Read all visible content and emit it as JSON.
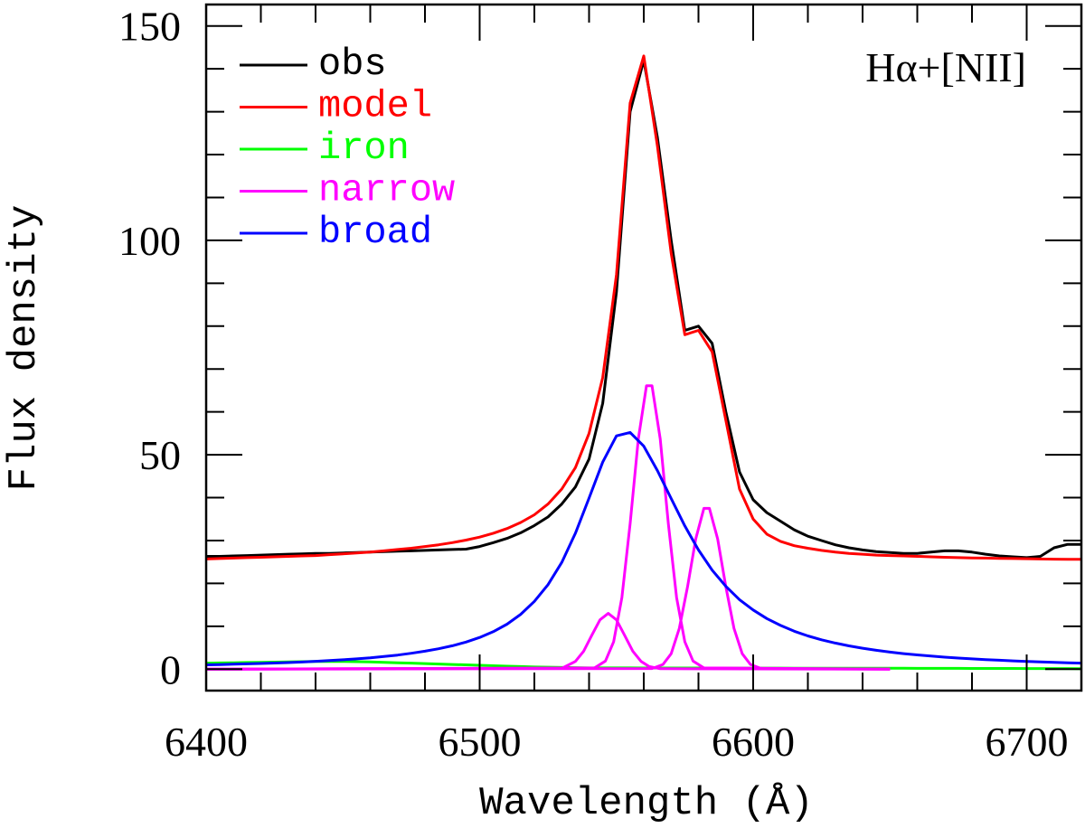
{
  "chart_data": {
    "type": "line",
    "title": "",
    "annotation": "Hα+[NII]",
    "xlabel": "Wavelength (Å)",
    "ylabel": "Flux density",
    "xlim": [
      6400,
      6720
    ],
    "ylim": [
      -5,
      155
    ],
    "x_ticks": [
      6400,
      6500,
      6600,
      6700
    ],
    "x_tick_labels": [
      "6400",
      "6500",
      "6600",
      "6700"
    ],
    "y_ticks": [
      0,
      50,
      100,
      150
    ],
    "y_tick_labels": [
      "0",
      "50",
      "100",
      "150"
    ],
    "x_minor_step": 20,
    "y_minor_step": 10,
    "grid": false,
    "legend_placement": "top-left",
    "x": [
      6400,
      6405,
      6410,
      6415,
      6420,
      6425,
      6430,
      6435,
      6440,
      6445,
      6450,
      6455,
      6460,
      6465,
      6470,
      6475,
      6480,
      6485,
      6490,
      6495,
      6500,
      6505,
      6510,
      6515,
      6520,
      6525,
      6530,
      6535,
      6540,
      6545,
      6550,
      6555,
      6560,
      6565,
      6570,
      6575,
      6580,
      6585,
      6590,
      6595,
      6600,
      6605,
      6610,
      6615,
      6620,
      6625,
      6630,
      6635,
      6640,
      6645,
      6650,
      6655,
      6660,
      6665,
      6670,
      6675,
      6680,
      6685,
      6690,
      6695,
      6700,
      6705,
      6710,
      6715,
      6720
    ],
    "series": [
      {
        "name": "obs",
        "color": "#000000",
        "values": [
          26.3,
          26.3,
          26.4,
          26.5,
          26.6,
          26.7,
          26.8,
          26.9,
          27.0,
          27.0,
          27.1,
          27.2,
          27.3,
          27.4,
          27.5,
          27.6,
          27.7,
          27.8,
          27.9,
          28.0,
          28.6,
          29.5,
          30.5,
          31.8,
          33.5,
          35.5,
          38.5,
          42.5,
          49,
          62,
          88,
          130,
          142,
          124,
          100,
          79,
          80,
          76,
          60,
          46,
          39.5,
          36.5,
          34.5,
          32.5,
          31,
          30,
          29,
          28.3,
          27.8,
          27.4,
          27.2,
          27.0,
          27.0,
          27.3,
          27.6,
          27.6,
          27.3,
          26.8,
          26.4,
          26.2,
          26.0,
          26.3,
          28.3,
          29.1,
          29.1
        ]
      },
      {
        "name": "model",
        "color": "#ff0000",
        "values": [
          25.7,
          25.8,
          25.9,
          26.0,
          26.1,
          26.2,
          26.3,
          26.4,
          26.5,
          26.7,
          26.9,
          27.1,
          27.3,
          27.6,
          27.9,
          28.2,
          28.6,
          29.0,
          29.5,
          30.1,
          30.8,
          31.7,
          32.8,
          34.2,
          36.0,
          38.5,
          42,
          47,
          55,
          68,
          92,
          132,
          143,
          122,
          97,
          78,
          79,
          74,
          58,
          42,
          35,
          31.5,
          29.8,
          28.8,
          28.2,
          27.7,
          27.3,
          27.0,
          26.8,
          26.6,
          26.5,
          26.4,
          26.3,
          26.2,
          26.1,
          26.0,
          25.95,
          25.9,
          25.85,
          25.8,
          25.75,
          25.7,
          25.65,
          25.6,
          25.6
        ]
      },
      {
        "name": "iron",
        "color": "#00ff00",
        "values": [
          1.4,
          1.45,
          1.5,
          1.55,
          1.6,
          1.65,
          1.7,
          1.75,
          1.8,
          1.8,
          1.8,
          1.75,
          1.7,
          1.6,
          1.5,
          1.4,
          1.3,
          1.2,
          1.1,
          1.0,
          0.9,
          0.8,
          0.7,
          0.6,
          0.5,
          0.45,
          0.4,
          0.35,
          0.3,
          0.3,
          0.3,
          0.3,
          0.28,
          0.28,
          0.27,
          0.27,
          0.26,
          0.26,
          0.25,
          0.25,
          0.25,
          0.24,
          0.24,
          0.23,
          0.23,
          0.22,
          0.22,
          0.21,
          0.21,
          0.2,
          0.2,
          0.2,
          0.19,
          0.19,
          0.18,
          0.18,
          0.17,
          0.17,
          0.16,
          0.16,
          0.15,
          0.15,
          0.14,
          0.14,
          0.13
        ]
      },
      {
        "name": "broad",
        "color": "#0000ff",
        "values": [
          1.01,
          1.08,
          1.15,
          1.23,
          1.33,
          1.43,
          1.54,
          1.67,
          1.82,
          1.99,
          2.18,
          2.39,
          2.64,
          2.94,
          3.28,
          3.7,
          4.19,
          4.76,
          5.46,
          6.32,
          7.4,
          8.74,
          10.5,
          12.8,
          15.8,
          19.7,
          24.9,
          31.7,
          39.9,
          48.3,
          54.4,
          55.2,
          52.0,
          46.3,
          39.8,
          33.4,
          27.8,
          23.1,
          19.3,
          16.2,
          13.8,
          11.8,
          10.2,
          8.85,
          7.75,
          6.84,
          6.08,
          5.43,
          4.88,
          4.4,
          3.99,
          3.63,
          3.32,
          3.05,
          2.81,
          2.59,
          2.4,
          2.23,
          2.08,
          1.93,
          1.81,
          1.7,
          1.59,
          1.5,
          1.41
        ]
      }
    ],
    "narrow": {
      "name": "narrow",
      "color": "#ff00ff",
      "components": [
        {
          "x": [
            6400,
            6530,
            6535,
            6538,
            6541,
            6544,
            6547,
            6550,
            6553,
            6556,
            6559,
            6562,
            6566,
            6650
          ],
          "y": [
            0,
            0.2,
            1.8,
            4.2,
            7.9,
            11.5,
            13,
            11.5,
            7.9,
            4.2,
            1.8,
            0.6,
            0.1,
            0
          ]
        },
        {
          "x": [
            6400,
            6542,
            6546,
            6549,
            6552,
            6555,
            6558,
            6561,
            6563,
            6566,
            6569,
            6572,
            6575,
            6578,
            6582,
            6650
          ],
          "y": [
            0,
            0.3,
            1.9,
            6.4,
            16.7,
            33.9,
            53.7,
            66.1,
            66.1,
            53.7,
            33.9,
            16.7,
            6.4,
            1.9,
            0.3,
            0
          ]
        },
        {
          "x": [
            6400,
            6563,
            6567,
            6570,
            6573,
            6576,
            6579,
            6582,
            6584,
            6587,
            6590,
            6593,
            6596,
            6599,
            6603,
            6650
          ],
          "y": [
            0,
            0.15,
            1.1,
            3.6,
            9.5,
            19.2,
            30.4,
            37.5,
            37.5,
            30.4,
            19.2,
            9.5,
            3.6,
            1.1,
            0.15,
            0
          ]
        }
      ]
    },
    "legend": [
      "obs",
      "model",
      "iron",
      "narrow",
      "broad"
    ]
  }
}
